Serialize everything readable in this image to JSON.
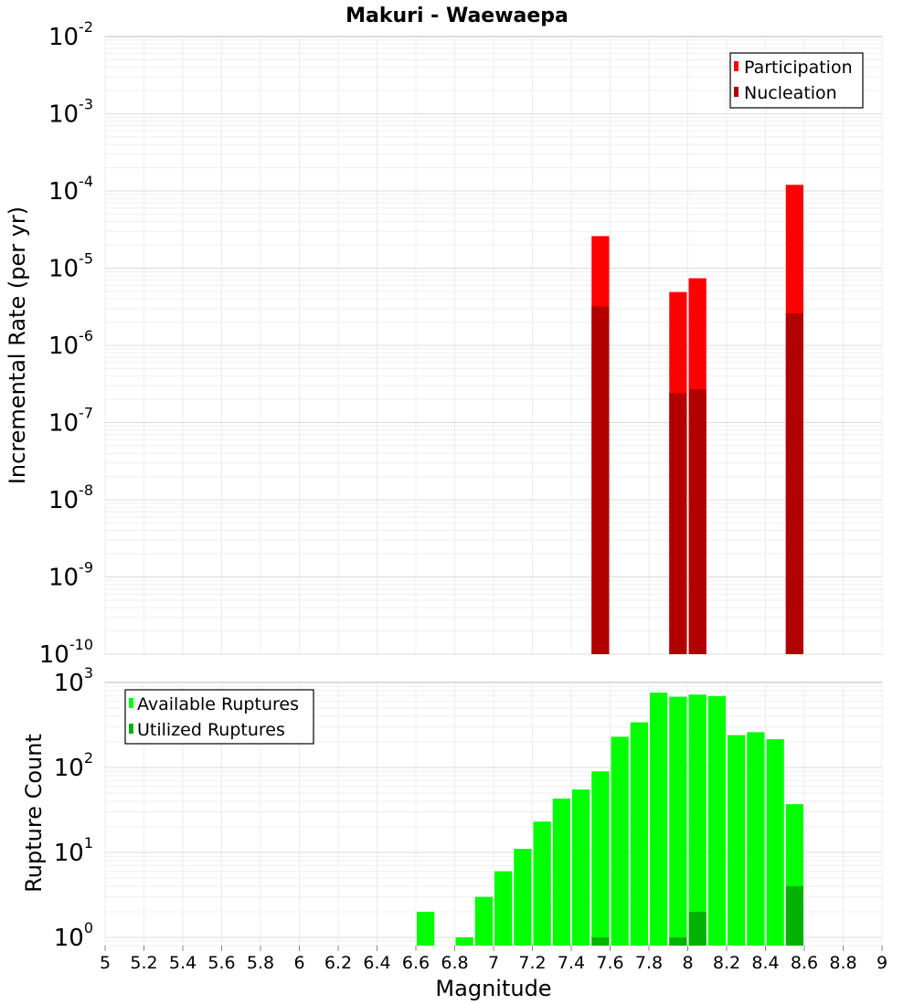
{
  "chart_data": [
    {
      "type": "bar",
      "title": "Makuri - Waewaepa",
      "xlabel": "",
      "ylabel": "Incremental Rate (per yr)",
      "xlim": [
        5,
        9
      ],
      "ylim": [
        1e-10,
        0.01
      ],
      "y_scale": "log",
      "grid": true,
      "legend_position": "top-right",
      "y_ticks": [
        {
          "base": "10",
          "exp": "-10",
          "value": 1e-10
        },
        {
          "base": "10",
          "exp": "-9",
          "value": 1e-09
        },
        {
          "base": "10",
          "exp": "-8",
          "value": 1e-08
        },
        {
          "base": "10",
          "exp": "-7",
          "value": 1e-07
        },
        {
          "base": "10",
          "exp": "-6",
          "value": 1e-06
        },
        {
          "base": "10",
          "exp": "-5",
          "value": 1e-05
        },
        {
          "base": "10",
          "exp": "-4",
          "value": 0.0001
        },
        {
          "base": "10",
          "exp": "-3",
          "value": 0.001
        },
        {
          "base": "10",
          "exp": "-2",
          "value": 0.01
        }
      ],
      "series": [
        {
          "name": "Participation",
          "color": "#ff0000",
          "points": [
            [
              7.55,
              2.6e-05
            ],
            [
              7.95,
              4.9e-06
            ],
            [
              8.05,
              7.4e-06
            ],
            [
              8.55,
              0.00012
            ]
          ]
        },
        {
          "name": "Nucleation",
          "color": "#b20000",
          "points": [
            [
              7.55,
              3.2e-06
            ],
            [
              7.95,
              2.4e-07
            ],
            [
              8.05,
              2.7e-07
            ],
            [
              8.55,
              2.6e-06
            ]
          ]
        }
      ]
    },
    {
      "type": "bar",
      "title": "",
      "xlabel": "Magnitude",
      "ylabel": "Rupture Count",
      "xlim": [
        5,
        9
      ],
      "ylim": [
        0.8,
        1000
      ],
      "y_scale": "log",
      "grid": true,
      "legend_position": "top-left",
      "x_ticks": [
        "5",
        "5.2",
        "5.4",
        "5.6",
        "5.8",
        "6",
        "6.2",
        "6.4",
        "6.6",
        "6.8",
        "7",
        "7.2",
        "7.4",
        "7.6",
        "7.8",
        "8",
        "8.2",
        "8.4",
        "8.6",
        "8.8",
        "9"
      ],
      "y_ticks": [
        {
          "base": "10",
          "exp": "0",
          "value": 1
        },
        {
          "base": "10",
          "exp": "1",
          "value": 10
        },
        {
          "base": "10",
          "exp": "2",
          "value": 100
        },
        {
          "base": "10",
          "exp": "3",
          "value": 1000
        }
      ],
      "series": [
        {
          "name": "Available Ruptures",
          "color": "#00ff00",
          "points": [
            [
              6.65,
              2
            ],
            [
              6.85,
              1
            ],
            [
              6.95,
              3
            ],
            [
              7.05,
              6
            ],
            [
              7.15,
              11
            ],
            [
              7.25,
              23
            ],
            [
              7.35,
              43
            ],
            [
              7.45,
              55
            ],
            [
              7.55,
              90
            ],
            [
              7.65,
              230
            ],
            [
              7.75,
              340
            ],
            [
              7.85,
              760
            ],
            [
              7.95,
              680
            ],
            [
              8.05,
              720
            ],
            [
              8.15,
              690
            ],
            [
              8.25,
              240
            ],
            [
              8.35,
              260
            ],
            [
              8.45,
              215
            ],
            [
              8.55,
              37
            ]
          ]
        },
        {
          "name": "Utilized Ruptures",
          "color": "#00b200",
          "points": [
            [
              7.55,
              1
            ],
            [
              7.95,
              1
            ],
            [
              8.05,
              2
            ],
            [
              8.55,
              4
            ]
          ]
        }
      ]
    }
  ]
}
